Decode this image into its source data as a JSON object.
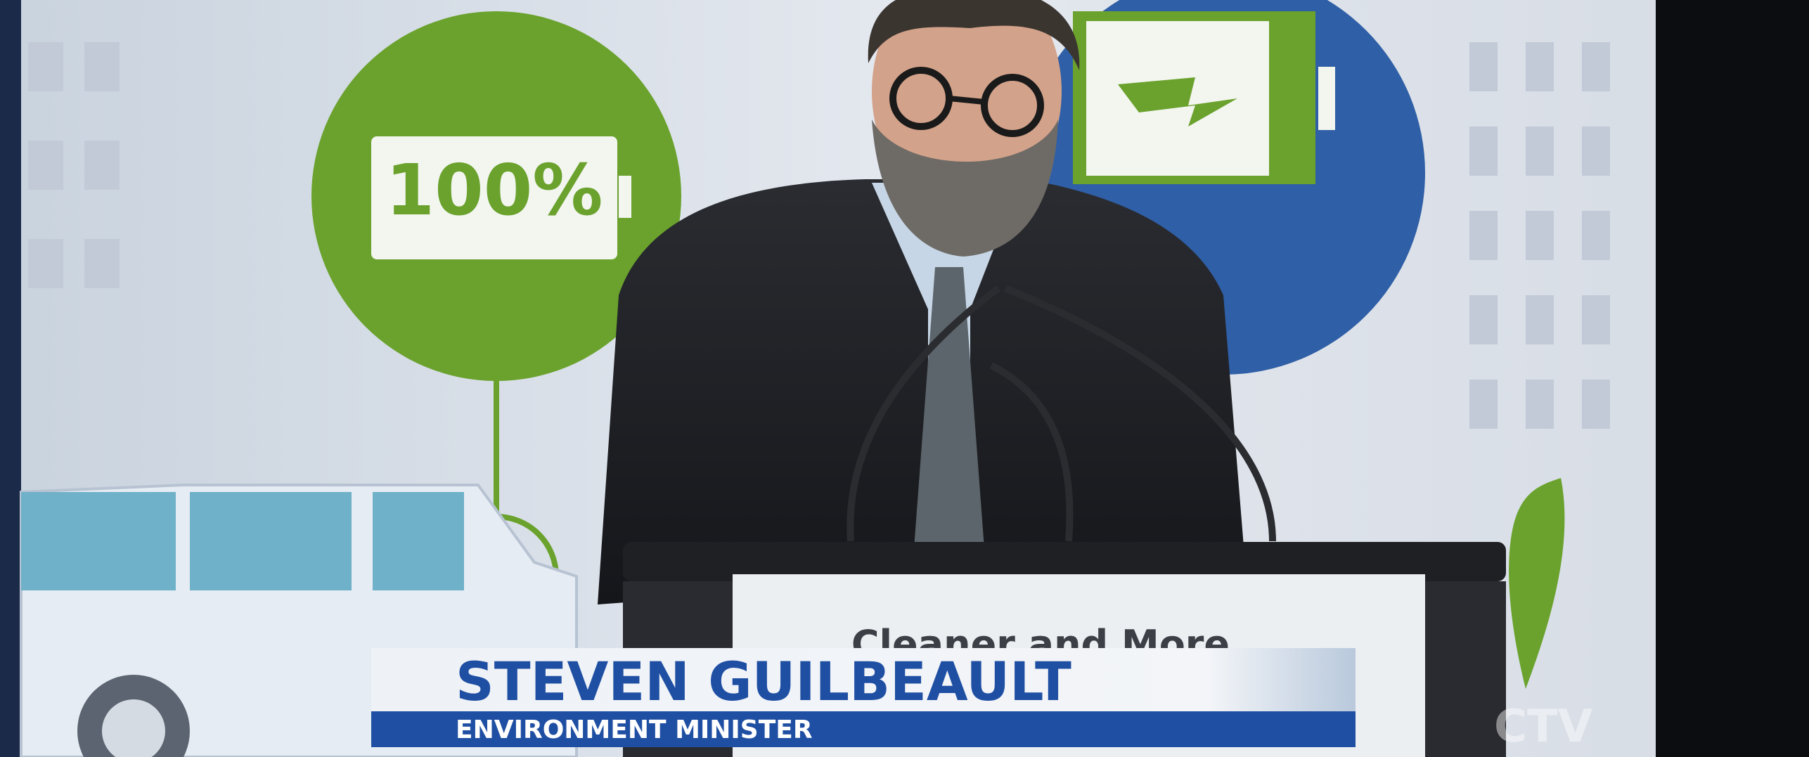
{
  "backdrop": {
    "battery_label": "100%",
    "podium_sign": "Cleaner and More"
  },
  "lower_third": {
    "name": "STEVEN GUILBEAULT",
    "title": "ENVIRONMENT MINISTER"
  },
  "watermark": "CTV"
}
